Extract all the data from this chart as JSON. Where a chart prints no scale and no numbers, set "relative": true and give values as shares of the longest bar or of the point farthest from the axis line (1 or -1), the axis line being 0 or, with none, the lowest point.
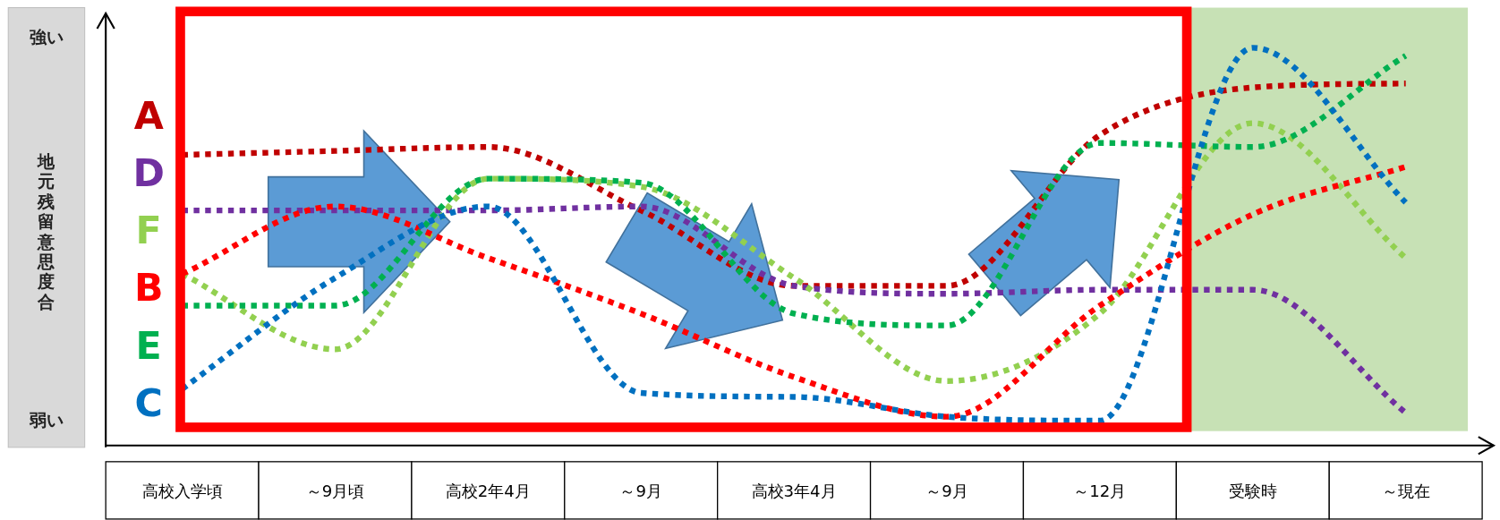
{
  "chart_data": {
    "type": "line",
    "relative": true,
    "ylabel": "地元残留意思度合",
    "annotations": [
      "強い",
      "弱い"
    ],
    "line_style": "dotted",
    "categories": [
      "高校入学頃",
      "～9月頃",
      "高校2年4月",
      "～9月",
      "高校3年4月",
      "～9月",
      "～12月",
      "受験時",
      "～現在"
    ],
    "series": [
      {
        "name": "A",
        "color": "#c00000",
        "values": [
          0.73,
          0.74,
          0.75,
          0.59,
          0.4,
          0.4,
          0.78,
          0.9,
          0.91
        ]
      },
      {
        "name": "D",
        "color": "#7030a0",
        "values": [
          0.59,
          0.59,
          0.59,
          0.6,
          0.4,
          0.38,
          0.39,
          0.39,
          0.08
        ]
      },
      {
        "name": "F",
        "color": "#92d050",
        "values": [
          0.43,
          0.24,
          0.67,
          0.65,
          0.42,
          0.16,
          0.33,
          0.81,
          0.47
        ]
      },
      {
        "name": "B",
        "color": "#ff0000",
        "values": [
          0.43,
          0.6,
          0.47,
          0.33,
          0.17,
          0.07,
          0.35,
          0.58,
          0.7
        ]
      },
      {
        "name": "E",
        "color": "#00b050",
        "values": [
          0.35,
          0.35,
          0.67,
          0.66,
          0.33,
          0.3,
          0.76,
          0.75,
          0.98
        ]
      },
      {
        "name": "C",
        "color": "#0070c0",
        "values": [
          0.14,
          0.42,
          0.6,
          0.13,
          0.12,
          0.07,
          0.06,
          1,
          0.61
        ]
      }
    ],
    "bands": [
      {
        "axis": "x",
        "from": "受験時",
        "to": "～現在",
        "color": "#a9d18e"
      }
    ]
  }
}
